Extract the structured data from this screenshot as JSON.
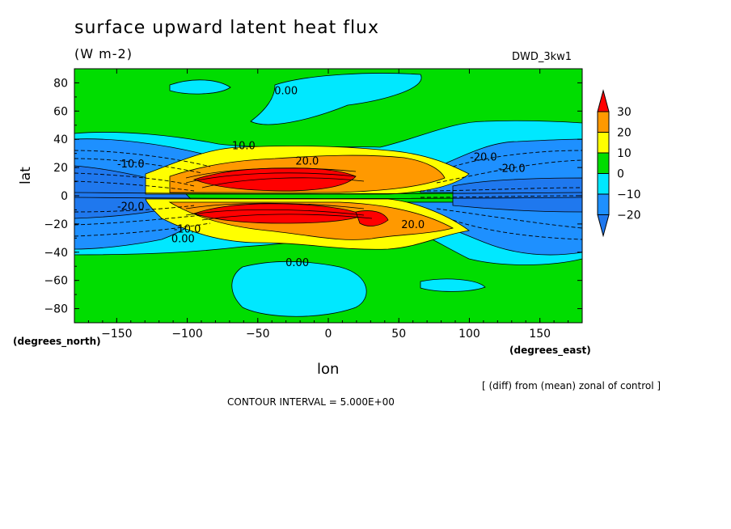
{
  "header": {
    "title": "surface upward latent heat flux",
    "units": "(W m-2)",
    "run_id": "DWD_3kw1"
  },
  "footer": {
    "note": "[ (diff) from (mean) zonal of control ]",
    "contour_interval": "CONTOUR INTERVAL = 5.000E+00"
  },
  "colors": {
    "lt_m20": "#1f78ee",
    "m20_m10": "#1e90ff",
    "m10_0": "#00e8ff",
    "0_10": "#00dd00",
    "10_20": "#ffff00",
    "20_30": "#ff9900",
    "gt_30": "#ff0000"
  },
  "chart_data": {
    "type": "contour",
    "title": "surface upward latent heat flux",
    "units": "(W m-2)",
    "xlabel": "lon",
    "xunits": "(degrees_east)",
    "ylabel": "lat",
    "yunits": "(degrees_north)",
    "xlim": [
      -180,
      180
    ],
    "ylim": [
      -90,
      90
    ],
    "xticks": [
      -150,
      -100,
      -50,
      0,
      50,
      100,
      150
    ],
    "yticks": [
      80,
      60,
      40,
      20,
      0,
      -20,
      -40,
      -60,
      -80
    ],
    "colorbar": {
      "levels": [
        30,
        20,
        10,
        0,
        -10,
        -20
      ],
      "labels": [
        "30",
        "20",
        "10",
        "0",
        "-10",
        "-20"
      ],
      "extend": "both"
    },
    "contour_interval": 5,
    "contour_labels": [
      {
        "text": "0.00",
        "lon": -30,
        "lat": 72
      },
      {
        "text": "0.00",
        "lon": -22,
        "lat": -50
      },
      {
        "text": "0.00",
        "lon": -103,
        "lat": -33
      },
      {
        "text": "10.0",
        "lon": -60,
        "lat": 33
      },
      {
        "text": "-10.0",
        "lon": -140,
        "lat": 20
      },
      {
        "text": "-10.0",
        "lon": -100,
        "lat": -26
      },
      {
        "text": "20.0",
        "lon": -15,
        "lat": 22
      },
      {
        "text": "-20.0",
        "lon": 110,
        "lat": 25
      },
      {
        "text": "-20.0",
        "lon": 130,
        "lat": 17
      },
      {
        "text": "-20.0",
        "lon": -140,
        "lat": -10
      },
      {
        "text": "20.0",
        "lon": 60,
        "lat": -23
      }
    ]
  }
}
